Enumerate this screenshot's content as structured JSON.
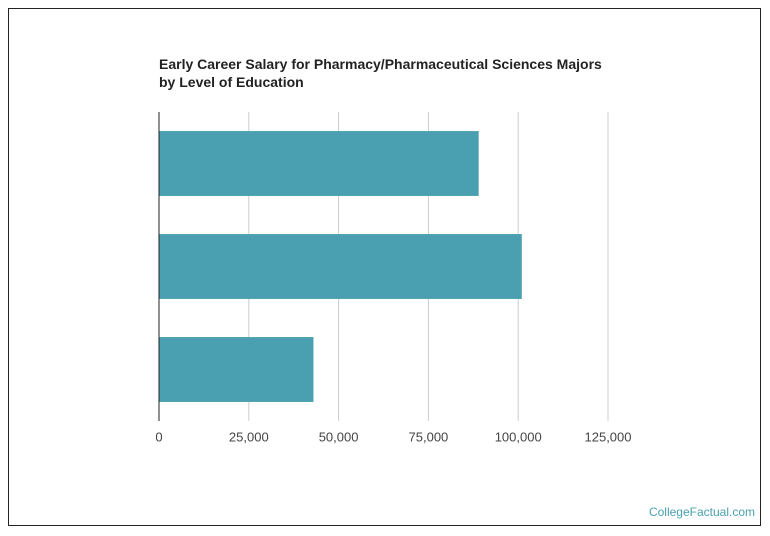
{
  "chart_data": {
    "type": "bar",
    "orientation": "horizontal",
    "title": "Early Career Salary for Pharmacy/Pharmaceutical Sciences Majors by Level of Education",
    "categories": [
      null,
      null,
      null
    ],
    "values": [
      89000,
      101000,
      43000
    ],
    "color": "#4aa0b0",
    "xlim": [
      0,
      125000
    ],
    "xticks": [
      0,
      {
        "value": 25000,
        "label": "25,000"
      },
      {
        "value": 50000,
        "label": "50,000"
      },
      {
        "value": 75000,
        "label": "75,000"
      },
      {
        "value": 100000,
        "label": "100,000"
      },
      {
        "value": 125000,
        "label": "125,000"
      }
    ],
    "grid": true,
    "watermark": "CollegeFactual.com"
  }
}
